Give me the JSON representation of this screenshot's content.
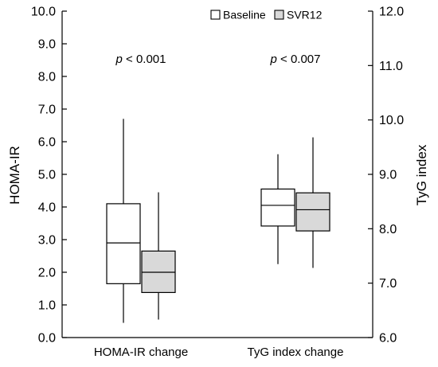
{
  "chart_data": {
    "type": "box",
    "legend_placement": "top-center",
    "legend": [
      {
        "label": "Baseline",
        "color": "#ffffff"
      },
      {
        "label": "SVR12",
        "color": "#d9d9d9"
      }
    ],
    "left_axis": {
      "label": "HOMA-IR",
      "range": [
        0.0,
        10.0
      ],
      "ticks": [
        "0.0",
        "1.0",
        "2.0",
        "3.0",
        "4.0",
        "5.0",
        "6.0",
        "7.0",
        "8.0",
        "9.0",
        "10.0"
      ]
    },
    "right_axis": {
      "label": "TyG index",
      "range": [
        6.0,
        12.0
      ],
      "ticks": [
        "6.0",
        "7.0",
        "8.0",
        "9.0",
        "10.0",
        "11.0",
        "12.0"
      ]
    },
    "categories": [
      {
        "label": "HOMA-IR change",
        "p_prefix": "p",
        "p_text": " < 0.001",
        "axis": "left",
        "boxes": [
          {
            "series": "Baseline",
            "min": 0.45,
            "q1": 1.65,
            "median": 2.9,
            "q3": 4.1,
            "max": 6.7
          },
          {
            "series": "SVR12",
            "min": 0.55,
            "q1": 1.38,
            "median": 2.0,
            "q3": 2.65,
            "max": 4.45
          }
        ]
      },
      {
        "label": "TyG index change",
        "p_prefix": "p",
        "p_text": " < 0.007",
        "axis": "right",
        "boxes": [
          {
            "series": "Baseline",
            "min": 7.35,
            "q1": 8.05,
            "median": 8.43,
            "q3": 8.73,
            "max": 9.37
          },
          {
            "series": "SVR12",
            "min": 7.28,
            "q1": 7.96,
            "median": 8.35,
            "q3": 8.66,
            "max": 9.68
          }
        ]
      }
    ]
  }
}
